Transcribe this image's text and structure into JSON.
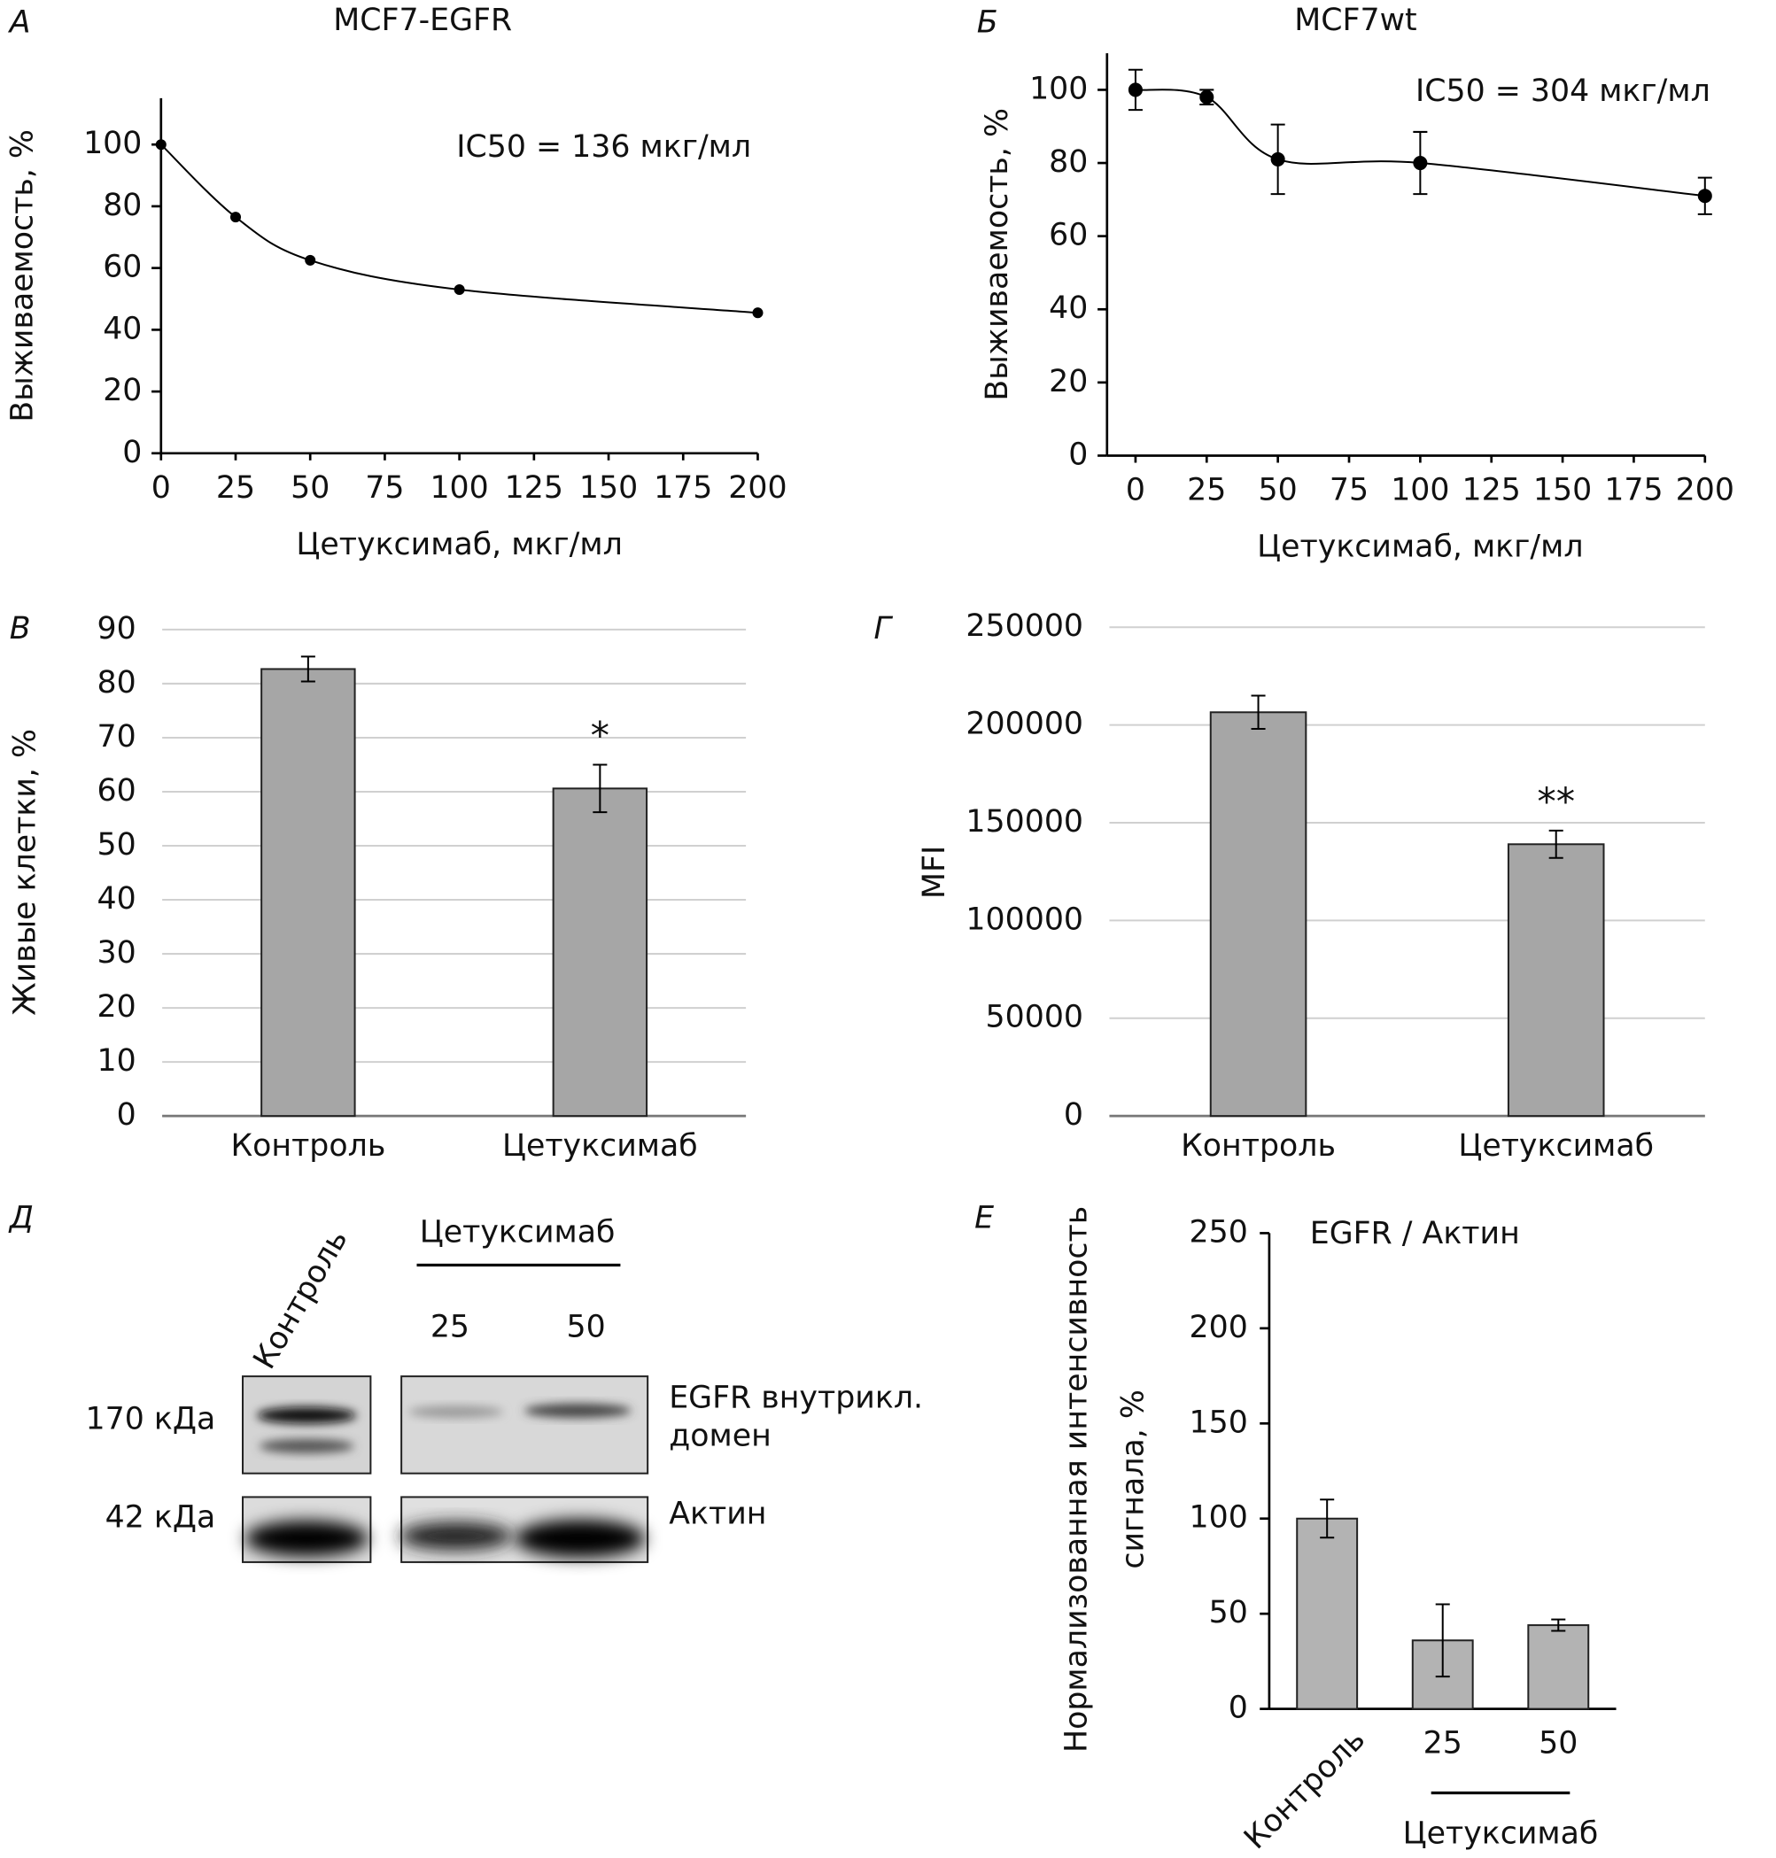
{
  "chart_data": [
    {
      "type": "line",
      "panel": "А",
      "title": "MCF7-EGFR",
      "annotation": "IC50 = 136 мкг/мл",
      "x_label": "Цетуксимаб, мкг/мл",
      "y_label": "Выживаемость, %",
      "x": [
        0,
        25,
        50,
        100,
        200
      ],
      "values": [
        100,
        76.5,
        62.5,
        53,
        45.5
      ],
      "color": "#000000",
      "xlim": [
        0,
        200
      ],
      "ylim": [
        0,
        115
      ],
      "xticks": [
        0,
        25,
        50,
        75,
        100,
        125,
        150,
        175,
        200
      ],
      "yticks": [
        0,
        20,
        40,
        60,
        80,
        100
      ]
    },
    {
      "type": "line",
      "panel": "Б",
      "title": "MCF7wt",
      "annotation": "IC50 = 304 мкг/мл",
      "x_label": "Цетуксимаб, мкг/мл",
      "y_label": "Выживаемость, %",
      "x": [
        0,
        25,
        50,
        100,
        200
      ],
      "values": [
        100,
        98,
        81,
        80,
        71
      ],
      "errors": [
        5.5,
        2,
        9.5,
        8.5,
        5
      ],
      "color": "#000000",
      "xlim": [
        -10,
        200
      ],
      "ylim": [
        0,
        110
      ],
      "xticks": [
        0,
        25,
        50,
        75,
        100,
        125,
        150,
        175,
        200
      ],
      "yticks": [
        0,
        20,
        40,
        60,
        80,
        100
      ]
    },
    {
      "type": "bar",
      "panel": "В",
      "y_label": "Живые клетки, %",
      "categories": [
        "Контроль",
        "Цетуксимаб"
      ],
      "values": [
        82.7,
        60.6
      ],
      "errors": [
        2.3,
        4.4
      ],
      "significance": [
        null,
        "*"
      ],
      "color": "#a6a6a6",
      "grid": true,
      "ylim": [
        0,
        90
      ],
      "yticks": [
        0,
        10,
        20,
        30,
        40,
        50,
        60,
        70,
        80,
        90
      ]
    },
    {
      "type": "bar",
      "panel": "Г",
      "y_label": "MFI",
      "categories": [
        "Контроль",
        "Цетуксимаб"
      ],
      "values": [
        206500,
        139000
      ],
      "errors": [
        8500,
        7000
      ],
      "significance": [
        null,
        "**"
      ],
      "color": "#a6a6a6",
      "grid": true,
      "ylim": [
        0,
        250000
      ],
      "yticks": [
        0,
        50000,
        100000,
        150000,
        200000,
        250000
      ]
    },
    {
      "type": "bar",
      "panel": "Е",
      "annotation": "EGFR / Актин",
      "y_label": [
        "Нормализованная интенсивность",
        "сигнала, %"
      ],
      "categories": [
        "Контроль",
        "25",
        "50"
      ],
      "group_label": "Цетуксимаб",
      "values": [
        100,
        36,
        44
      ],
      "errors": [
        10,
        19,
        3
      ],
      "color": "#b3b3b3",
      "grid": false,
      "ylim": [
        0,
        250
      ],
      "yticks": [
        0,
        50,
        100,
        150,
        200,
        250
      ]
    }
  ],
  "blot": {
    "panel": "Д",
    "control": "Контроль",
    "treatment": "Цетуксимаб",
    "doses": [
      "25",
      "50"
    ],
    "markers": [
      "170 кДа",
      "42 кДа"
    ],
    "bands": [
      [
        "EGFR внутрикл.",
        "домен"
      ],
      "Актин"
    ]
  }
}
